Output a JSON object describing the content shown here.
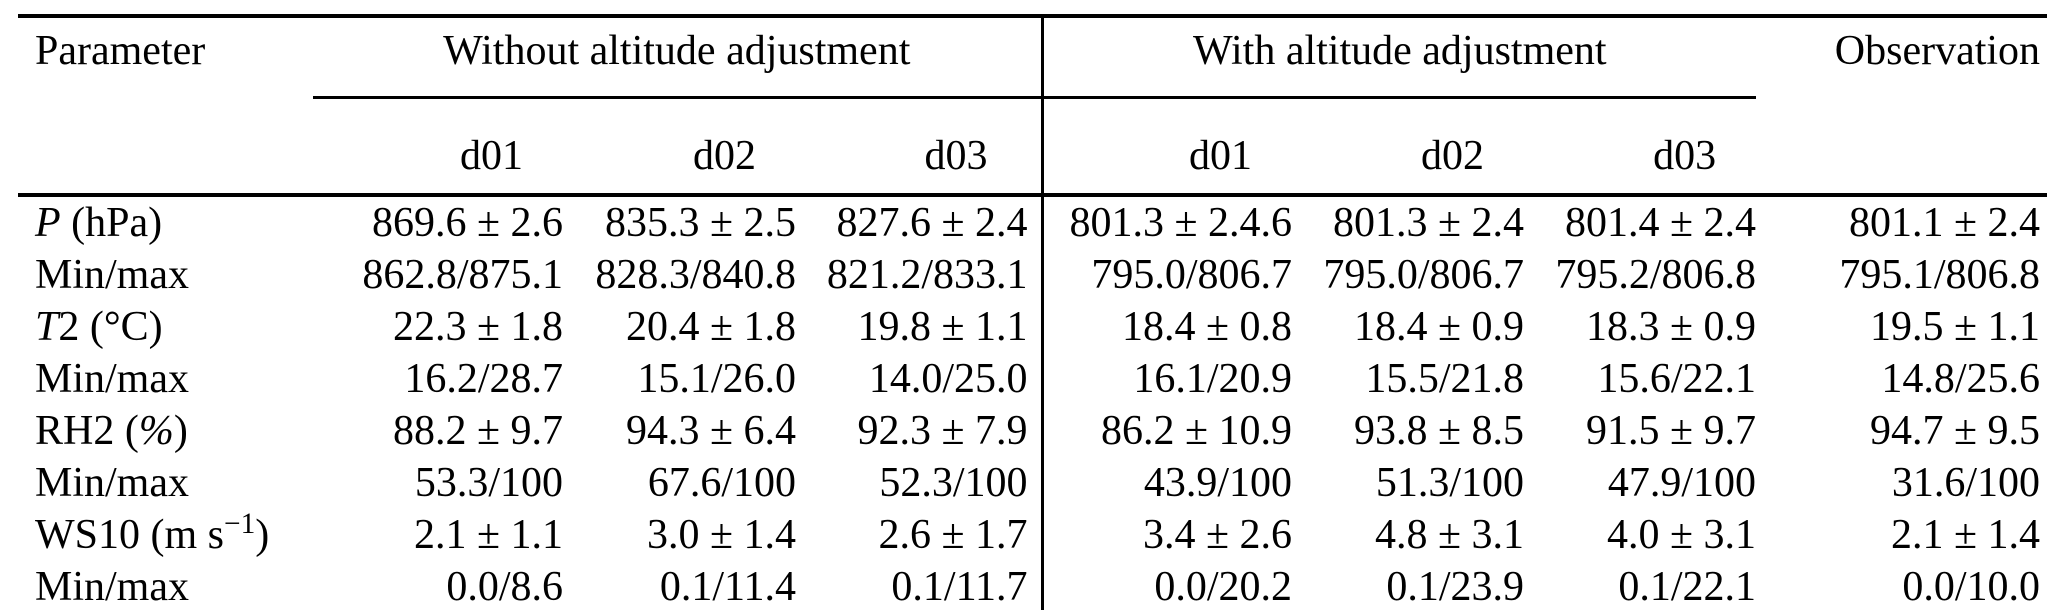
{
  "table": {
    "header": {
      "parameter_label": "Parameter",
      "without_group_label": "Without altitude adjustment",
      "with_group_label": "With altitude adjustment",
      "observation_label": "Observation",
      "without_subcols": [
        "d01",
        "d02",
        "d03"
      ],
      "with_subcols": [
        "d01",
        "d02",
        "d03"
      ]
    },
    "rows": [
      {
        "label_segments": [
          {
            "t": "P",
            "i": true
          },
          {
            "t": " (hPa)"
          }
        ],
        "values": [
          "869.6 ± 2.6",
          "835.3 ± 2.5",
          "827.6 ± 2.4",
          "801.3 ± 2.4.6",
          "801.3 ± 2.4",
          "801.4 ± 2.4",
          "801.1 ± 2.4"
        ]
      },
      {
        "label_segments": [
          {
            "t": "Min/max"
          }
        ],
        "values": [
          "862.8/875.1",
          "828.3/840.8",
          "821.2/833.1",
          "795.0/806.7",
          "795.0/806.7",
          "795.2/806.8",
          "795.1/806.8"
        ]
      },
      {
        "label_segments": [
          {
            "t": "T",
            "i": true
          },
          {
            "t": "2 (°C)"
          }
        ],
        "values": [
          "22.3 ± 1.8",
          "20.4 ± 1.8",
          "19.8 ± 1.1",
          "18.4 ± 0.8",
          "18.4 ± 0.9",
          "18.3 ± 0.9",
          "19.5 ± 1.1"
        ]
      },
      {
        "label_segments": [
          {
            "t": "Min/max"
          }
        ],
        "values": [
          "16.2/28.7",
          "15.1/26.0",
          "14.0/25.0",
          "16.1/20.9",
          "15.5/21.8",
          "15.6/22.1",
          "14.8/25.6"
        ]
      },
      {
        "label_segments": [
          {
            "t": "RH2 ("
          },
          {
            "t": "%",
            "i": true
          },
          {
            "t": ")"
          }
        ],
        "values": [
          "88.2 ± 9.7",
          "94.3 ± 6.4",
          "92.3 ± 7.9",
          "86.2 ± 10.9",
          "93.8 ± 8.5",
          "91.5 ± 9.7",
          "94.7 ± 9.5"
        ]
      },
      {
        "label_segments": [
          {
            "t": "Min/max"
          }
        ],
        "values": [
          "53.3/100",
          "67.6/100",
          "52.3/100",
          "43.9/100",
          "51.3/100",
          "47.9/100",
          "31.6/100"
        ]
      },
      {
        "label_segments": [
          {
            "t": "WS10 (m s"
          },
          {
            "t": "−1",
            "sup": true
          },
          {
            "t": ")"
          }
        ],
        "values": [
          "2.1 ± 1.1",
          "3.0 ± 1.4",
          "2.6 ± 1.7",
          "3.4 ± 2.6",
          "4.8 ± 3.1",
          "4.0 ± 3.1",
          "2.1 ± 1.4"
        ]
      },
      {
        "label_segments": [
          {
            "t": "Min/max"
          }
        ],
        "values": [
          "0.0/8.6",
          "0.1/11.4",
          "0.1/11.7",
          "0.0/20.2",
          "0.1/23.9",
          "0.1/22.1",
          "0.0/10.0"
        ]
      }
    ],
    "colors": {
      "text": "#000000",
      "background": "#ffffff",
      "rule": "#000000"
    }
  }
}
